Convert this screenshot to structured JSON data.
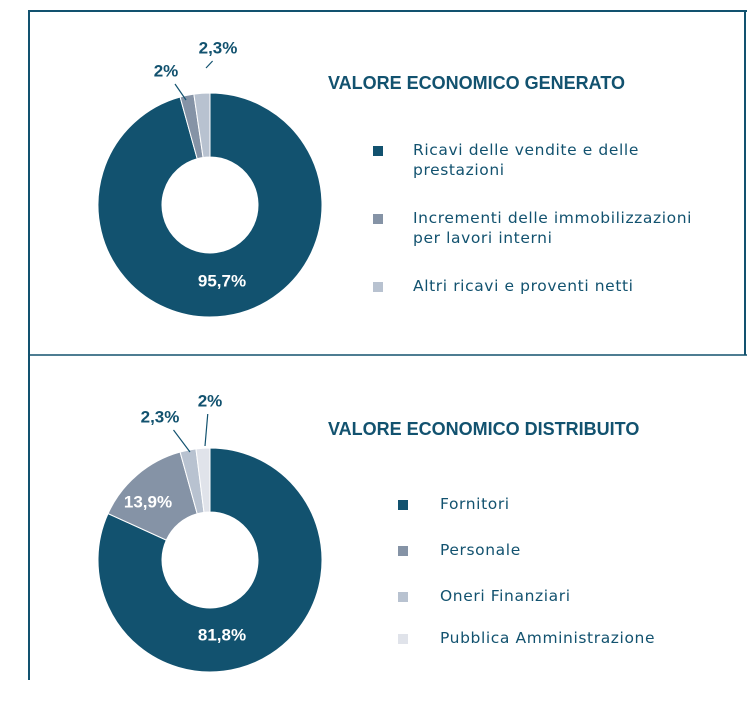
{
  "chart_data": [
    {
      "type": "pie",
      "title": "VALORE ECONOMICO GENERATO",
      "categories": [
        "Ricavi delle vendite e delle prestazioni",
        "Incrementi delle immobilizzazioni per lavori interni",
        "Altri ricavi e proventi netti"
      ],
      "values": [
        95.7,
        2,
        2.3
      ],
      "value_labels": [
        "95,7%",
        "2%",
        "2,3%"
      ],
      "colors": [
        "#12526f",
        "#8593a6",
        "#b8c2d0"
      ]
    },
    {
      "type": "pie",
      "title": "VALORE ECONOMICO DISTRIBUITO",
      "categories": [
        "Fornitori",
        "Personale",
        "Oneri Finanziari",
        "Pubblica Amministrazione"
      ],
      "values": [
        81.8,
        13.9,
        2.3,
        2
      ],
      "value_labels": [
        "81,8%",
        "13,9%",
        "2,3%",
        "2%"
      ],
      "colors": [
        "#12526f",
        "#8593a6",
        "#b8c2d0",
        "#e0e3ea"
      ]
    }
  ]
}
